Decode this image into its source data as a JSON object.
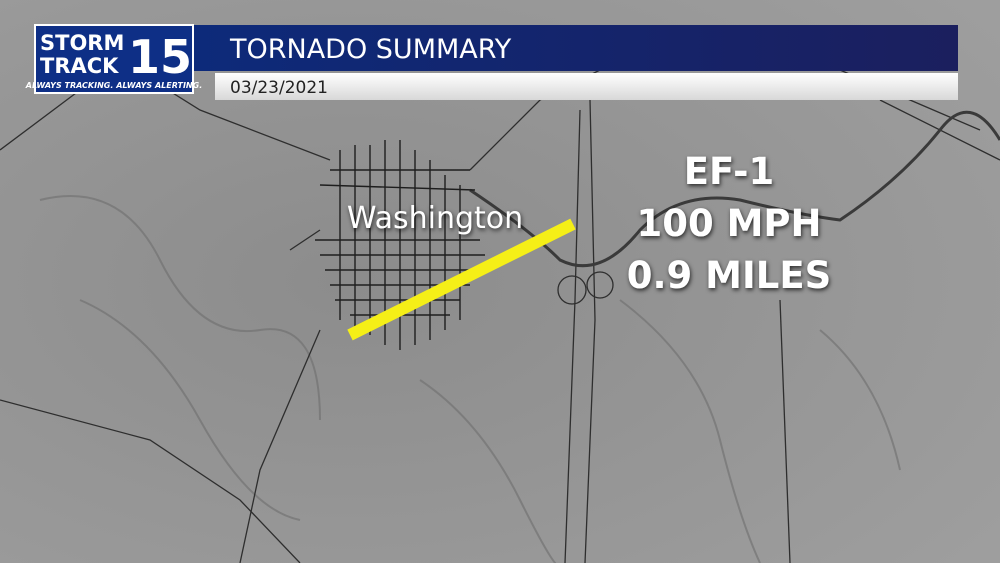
{
  "header": {
    "logo": {
      "line1": "STORM",
      "line2": "TRACK",
      "number": "15",
      "tagline": "ALWAYS TRACKING. ALWAYS ALERTING."
    },
    "title": "TORNADO SUMMARY",
    "date": "03/23/2021"
  },
  "map": {
    "place_label": "Washington",
    "stats": [
      "EF-1",
      "100 MPH",
      "0.9 MILES"
    ]
  }
}
